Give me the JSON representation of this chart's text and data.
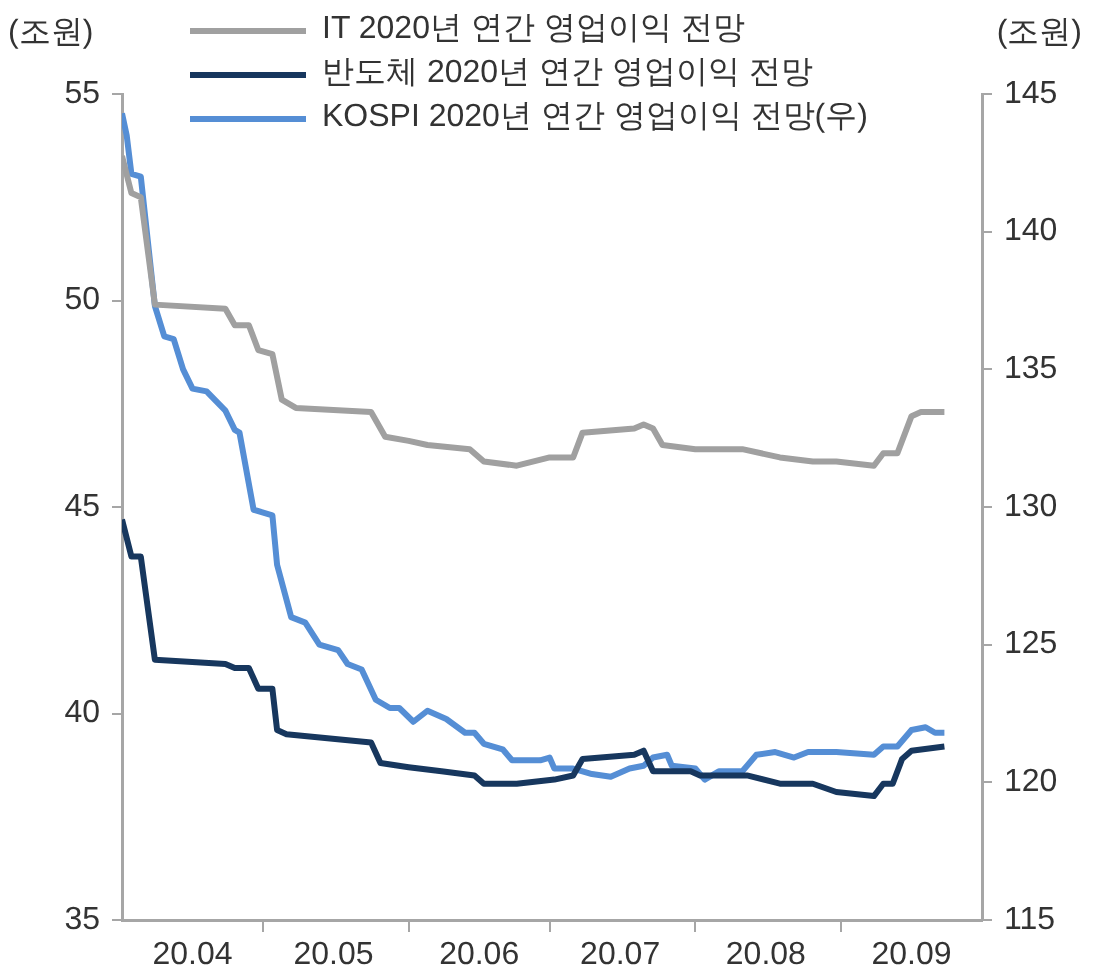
{
  "chart_data": {
    "type": "line",
    "ylabel": "(조원)",
    "y2label": "(조원)",
    "legend": "top",
    "grid": false,
    "marker": "none",
    "line_style": "solid",
    "xlim": [
      "2020-04-01",
      "2020-10-01"
    ],
    "xticks": [
      {
        "value": "2020-04-16",
        "label": "20.04"
      },
      {
        "value": "2020-05-01",
        "label": null
      },
      {
        "value": "2020-05-16",
        "label": "20.05"
      },
      {
        "value": "2020-06-01",
        "label": null
      },
      {
        "value": "2020-06-16",
        "label": "20.06"
      },
      {
        "value": "2020-07-01",
        "label": null
      },
      {
        "value": "2020-07-16",
        "label": "20.07"
      },
      {
        "value": "2020-08-01",
        "label": null
      },
      {
        "value": "2020-08-16",
        "label": "20.08"
      },
      {
        "value": "2020-09-01",
        "label": null
      },
      {
        "value": "2020-09-16",
        "label": "20.09"
      }
    ],
    "ylim": [
      35,
      55
    ],
    "yticks": [
      35,
      40,
      45,
      50,
      55
    ],
    "y2lim": [
      115,
      145
    ],
    "y2ticks": [
      115,
      120,
      125,
      130,
      135,
      140,
      145
    ],
    "series": [
      {
        "name": "IT 2020년 연간 영업이익 전망",
        "color": "#a0a0a0",
        "x": [
          "2020-04-01",
          "2020-04-03",
          "2020-04-05",
          "2020-04-08",
          "2020-04-23",
          "2020-04-25",
          "2020-04-28",
          "2020-04-30",
          "2020-05-03",
          "2020-05-05",
          "2020-05-08",
          "2020-05-24",
          "2020-05-27",
          "2020-06-01",
          "2020-06-05",
          "2020-06-14",
          "2020-06-17",
          "2020-06-24",
          "2020-07-01",
          "2020-07-06",
          "2020-07-08",
          "2020-07-19",
          "2020-07-21",
          "2020-07-23",
          "2020-07-25",
          "2020-08-01",
          "2020-08-11",
          "2020-08-19",
          "2020-08-26",
          "2020-08-31",
          "2020-09-08",
          "2020-09-10",
          "2020-09-13",
          "2020-09-16",
          "2020-09-18",
          "2020-09-23"
        ],
        "values": [
          53.5,
          52.6,
          52.5,
          49.9,
          49.8,
          49.4,
          49.4,
          48.8,
          48.7,
          47.6,
          47.4,
          47.3,
          46.7,
          46.6,
          46.5,
          46.4,
          46.1,
          46.0,
          46.2,
          46.2,
          46.8,
          46.9,
          47.0,
          46.9,
          46.5,
          46.4,
          46.4,
          46.2,
          46.1,
          46.1,
          46.0,
          46.3,
          46.3,
          47.2,
          47.3,
          47.3
        ]
      },
      {
        "name": "반도체 2020년 연간 영업이익 전망",
        "color": "#17375e",
        "x": [
          "2020-04-01",
          "2020-04-03",
          "2020-04-05",
          "2020-04-08",
          "2020-04-23",
          "2020-04-25",
          "2020-04-28",
          "2020-04-30",
          "2020-05-03",
          "2020-05-04",
          "2020-05-06",
          "2020-05-24",
          "2020-05-26",
          "2020-06-01",
          "2020-06-08",
          "2020-06-15",
          "2020-06-17",
          "2020-06-24",
          "2020-07-02",
          "2020-07-06",
          "2020-07-08",
          "2020-07-19",
          "2020-07-21",
          "2020-07-23",
          "2020-07-31",
          "2020-08-02",
          "2020-08-12",
          "2020-08-19",
          "2020-08-26",
          "2020-08-31",
          "2020-09-08",
          "2020-09-10",
          "2020-09-12",
          "2020-09-14",
          "2020-09-16",
          "2020-09-23"
        ],
        "values": [
          44.7,
          43.8,
          43.8,
          41.3,
          41.2,
          41.1,
          41.1,
          40.6,
          40.6,
          39.6,
          39.5,
          39.3,
          38.8,
          38.7,
          38.6,
          38.5,
          38.3,
          38.3,
          38.4,
          38.5,
          38.9,
          39.0,
          39.1,
          38.6,
          38.6,
          38.5,
          38.5,
          38.3,
          38.3,
          38.1,
          38.0,
          38.3,
          38.3,
          38.9,
          39.1,
          39.2
        ]
      },
      {
        "name": "KOSPI 2020년 연간 영업이익 전망(우)",
        "color": "#558ed5",
        "axis": "y2",
        "x": [
          "2020-04-01",
          "2020-04-02",
          "2020-04-03",
          "2020-04-05",
          "2020-04-08",
          "2020-04-10",
          "2020-04-12",
          "2020-04-14",
          "2020-04-16",
          "2020-04-19",
          "2020-04-23",
          "2020-04-25",
          "2020-04-26",
          "2020-04-29",
          "2020-05-03",
          "2020-05-04",
          "2020-05-07",
          "2020-05-10",
          "2020-05-13",
          "2020-05-17",
          "2020-05-19",
          "2020-05-22",
          "2020-05-25",
          "2020-05-28",
          "2020-05-30",
          "2020-06-02",
          "2020-06-05",
          "2020-06-09",
          "2020-06-13",
          "2020-06-15",
          "2020-06-17",
          "2020-06-21",
          "2020-06-23",
          "2020-06-29",
          "2020-07-01",
          "2020-07-02",
          "2020-07-06",
          "2020-07-10",
          "2020-07-14",
          "2020-07-18",
          "2020-07-21",
          "2020-07-23",
          "2020-07-26",
          "2020-07-27",
          "2020-08-01",
          "2020-08-03",
          "2020-08-06",
          "2020-08-11",
          "2020-08-14",
          "2020-08-18",
          "2020-08-22",
          "2020-08-25",
          "2020-08-31",
          "2020-09-08",
          "2020-09-10",
          "2020-09-13",
          "2020-09-16",
          "2020-09-19",
          "2020-09-21",
          "2020-09-23"
        ],
        "values": [
          144.3,
          143.5,
          142.1,
          142.0,
          137.3,
          136.2,
          136.1,
          135.0,
          134.3,
          134.2,
          133.5,
          132.8,
          132.7,
          129.9,
          129.7,
          127.9,
          126.0,
          125.8,
          125.0,
          124.8,
          124.3,
          124.1,
          123.0,
          122.7,
          122.7,
          122.2,
          122.6,
          122.3,
          121.8,
          121.8,
          121.4,
          121.2,
          120.8,
          120.8,
          120.9,
          120.5,
          120.5,
          120.3,
          120.2,
          120.5,
          120.6,
          120.9,
          121.0,
          120.6,
          120.5,
          120.1,
          120.4,
          120.4,
          121.0,
          121.1,
          120.9,
          121.1,
          121.1,
          121.0,
          121.3,
          121.3,
          121.9,
          122.0,
          121.8,
          121.8
        ]
      }
    ]
  }
}
